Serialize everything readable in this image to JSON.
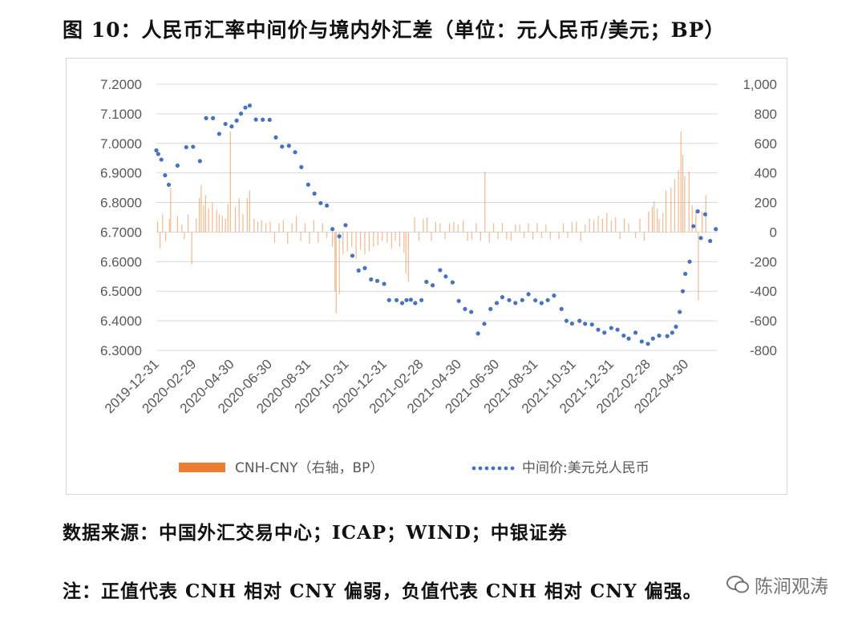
{
  "title": "图 10：人民币汇率中间价与境内外汇差（单位：元人民币/美元；BP）",
  "source": "数据来源：中国外汇交易中心；ICAP；WIND；中银证券",
  "note": "注：正值代表 CNH 相对 CNY 偏弱，负值代表 CNH 相对 CNY 偏强。",
  "watermark": "陈涧观涛",
  "colors": {
    "bar": "#ED7D31",
    "dot": "#4472C4",
    "axis_text": "#595959"
  },
  "chart_data": {
    "type": "bar+line",
    "x_tick_labels": [
      "2019-12-31",
      "2020-02-29",
      "2020-04-30",
      "2020-06-30",
      "2020-08-31",
      "2020-10-31",
      "2020-12-31",
      "2021-02-28",
      "2021-04-30",
      "2021-06-30",
      "2021-08-31",
      "2021-10-31",
      "2021-12-31",
      "2022-02-28",
      "2022-04-30"
    ],
    "left_axis": {
      "min": 6.3,
      "max": 7.2,
      "tick_labels": [
        "6.3000",
        "6.4000",
        "6.5000",
        "6.6000",
        "6.7000",
        "6.8000",
        "6.9000",
        "7.0000",
        "7.1000",
        "7.2000"
      ]
    },
    "right_axis": {
      "min": -800,
      "max": 1000,
      "tick_labels": [
        "-800",
        "-600",
        "-400",
        "-200",
        "0",
        "200",
        "400",
        "600",
        "800",
        "1,000"
      ]
    },
    "series": [
      {
        "name": "CNH-CNY（右轴，BP）",
        "kind": "bar",
        "axis": "right",
        "points": [
          [
            "2020-01-02",
            70
          ],
          [
            "2020-01-06",
            -110
          ],
          [
            "2020-01-10",
            120
          ],
          [
            "2020-01-15",
            -60
          ],
          [
            "2020-01-21",
            90
          ],
          [
            "2020-01-23",
            300
          ],
          [
            "2020-02-03",
            110
          ],
          [
            "2020-02-10",
            50
          ],
          [
            "2020-02-14",
            -50
          ],
          [
            "2020-02-20",
            120
          ],
          [
            "2020-02-26",
            -220
          ],
          [
            "2020-03-04",
            90
          ],
          [
            "2020-03-09",
            230
          ],
          [
            "2020-03-12",
            320
          ],
          [
            "2020-03-16",
            180
          ],
          [
            "2020-03-19",
            250
          ],
          [
            "2020-03-24",
            160
          ],
          [
            "2020-03-30",
            200
          ],
          [
            "2020-04-06",
            150
          ],
          [
            "2020-04-10",
            120
          ],
          [
            "2020-04-15",
            110
          ],
          [
            "2020-04-20",
            90
          ],
          [
            "2020-04-24",
            190
          ],
          [
            "2020-04-28",
            680
          ],
          [
            "2020-05-06",
            170
          ],
          [
            "2020-05-12",
            230
          ],
          [
            "2020-05-18",
            120
          ],
          [
            "2020-05-25",
            230
          ],
          [
            "2020-05-29",
            280
          ],
          [
            "2020-06-05",
            90
          ],
          [
            "2020-06-11",
            70
          ],
          [
            "2020-06-17",
            80
          ],
          [
            "2020-06-24",
            60
          ],
          [
            "2020-07-01",
            70
          ],
          [
            "2020-07-08",
            -70
          ],
          [
            "2020-07-15",
            60
          ],
          [
            "2020-07-22",
            80
          ],
          [
            "2020-07-29",
            -80
          ],
          [
            "2020-08-05",
            60
          ],
          [
            "2020-08-12",
            110
          ],
          [
            "2020-08-19",
            -60
          ],
          [
            "2020-08-26",
            60
          ],
          [
            "2020-09-02",
            -80
          ],
          [
            "2020-09-09",
            80
          ],
          [
            "2020-09-16",
            -70
          ],
          [
            "2020-09-23",
            60
          ],
          [
            "2020-09-30",
            -40
          ],
          [
            "2020-10-09",
            -100
          ],
          [
            "2020-10-13",
            -400
          ],
          [
            "2020-10-15",
            -550
          ],
          [
            "2020-10-20",
            -420
          ],
          [
            "2020-10-26",
            -150
          ],
          [
            "2020-11-02",
            -130
          ],
          [
            "2020-11-09",
            -100
          ],
          [
            "2020-11-16",
            -180
          ],
          [
            "2020-11-23",
            -120
          ],
          [
            "2020-11-30",
            -150
          ],
          [
            "2020-12-07",
            -130
          ],
          [
            "2020-12-14",
            -100
          ],
          [
            "2020-12-21",
            -90
          ],
          [
            "2020-12-28",
            -60
          ],
          [
            "2021-01-05",
            -70
          ],
          [
            "2021-01-12",
            -110
          ],
          [
            "2021-01-18",
            -60
          ],
          [
            "2021-01-25",
            -100
          ],
          [
            "2021-02-01",
            -140
          ],
          [
            "2021-02-04",
            -280
          ],
          [
            "2021-02-08",
            -340
          ],
          [
            "2021-02-18",
            100
          ],
          [
            "2021-02-25",
            -60
          ],
          [
            "2021-03-04",
            90
          ],
          [
            "2021-03-10",
            100
          ],
          [
            "2021-03-17",
            -60
          ],
          [
            "2021-03-24",
            70
          ],
          [
            "2021-03-31",
            60
          ],
          [
            "2021-04-08",
            -50
          ],
          [
            "2021-04-15",
            60
          ],
          [
            "2021-04-22",
            70
          ],
          [
            "2021-04-29",
            50
          ],
          [
            "2021-05-07",
            80
          ],
          [
            "2021-05-14",
            -60
          ],
          [
            "2021-05-21",
            -50
          ],
          [
            "2021-05-28",
            60
          ],
          [
            "2021-06-04",
            -60
          ],
          [
            "2021-06-11",
            410
          ],
          [
            "2021-06-18",
            -70
          ],
          [
            "2021-06-25",
            60
          ],
          [
            "2021-07-02",
            -50
          ],
          [
            "2021-07-09",
            60
          ],
          [
            "2021-07-16",
            -50
          ],
          [
            "2021-07-23",
            -60
          ],
          [
            "2021-07-30",
            50
          ],
          [
            "2021-08-06",
            50
          ],
          [
            "2021-08-13",
            -40
          ],
          [
            "2021-08-20",
            60
          ],
          [
            "2021-08-27",
            -50
          ],
          [
            "2021-09-03",
            60
          ],
          [
            "2021-09-10",
            -40
          ],
          [
            "2021-09-17",
            50
          ],
          [
            "2021-09-24",
            -50
          ],
          [
            "2021-10-08",
            -50
          ],
          [
            "2021-10-15",
            60
          ],
          [
            "2021-10-22",
            -40
          ],
          [
            "2021-10-29",
            70
          ],
          [
            "2021-11-05",
            70
          ],
          [
            "2021-11-12",
            -60
          ],
          [
            "2021-11-19",
            50
          ],
          [
            "2021-11-26",
            90
          ],
          [
            "2021-12-03",
            80
          ],
          [
            "2021-12-10",
            110
          ],
          [
            "2021-12-17",
            90
          ],
          [
            "2021-12-24",
            130
          ],
          [
            "2021-12-31",
            80
          ],
          [
            "2022-01-07",
            100
          ],
          [
            "2022-01-14",
            -50
          ],
          [
            "2022-01-21",
            90
          ],
          [
            "2022-01-28",
            60
          ],
          [
            "2022-02-08",
            -40
          ],
          [
            "2022-02-15",
            90
          ],
          [
            "2022-02-22",
            -60
          ],
          [
            "2022-03-01",
            140
          ],
          [
            "2022-03-07",
            170
          ],
          [
            "2022-03-10",
            210
          ],
          [
            "2022-03-15",
            160
          ],
          [
            "2022-03-18",
            90
          ],
          [
            "2022-03-24",
            130
          ],
          [
            "2022-03-29",
            280
          ],
          [
            "2022-04-06",
            300
          ],
          [
            "2022-04-12",
            360
          ],
          [
            "2022-04-18",
            420
          ],
          [
            "2022-04-22",
            680
          ],
          [
            "2022-04-25",
            520
          ],
          [
            "2022-04-28",
            380
          ],
          [
            "2022-05-05",
            410
          ],
          [
            "2022-05-10",
            180
          ],
          [
            "2022-05-16",
            150
          ],
          [
            "2022-05-20",
            -460
          ],
          [
            "2022-05-26",
            140
          ],
          [
            "2022-06-01",
            250
          ]
        ]
      },
      {
        "name": "中间价:美元兑人民币",
        "kind": "dotted-line",
        "axis": "left",
        "points": [
          [
            "2019-12-31",
            6.9762
          ],
          [
            "2020-01-03",
            6.964
          ],
          [
            "2020-01-08",
            6.945
          ],
          [
            "2020-01-14",
            6.892
          ],
          [
            "2020-01-20",
            6.86
          ],
          [
            "2020-02-03",
            6.9249
          ],
          [
            "2020-02-17",
            6.987
          ],
          [
            "2020-02-28",
            6.9884
          ],
          [
            "2020-03-10",
            6.94
          ],
          [
            "2020-03-20",
            7.0851
          ],
          [
            "2020-03-31",
            7.0851
          ],
          [
            "2020-04-10",
            7.032
          ],
          [
            "2020-04-20",
            7.0657
          ],
          [
            "2020-04-30",
            7.0571
          ],
          [
            "2020-05-08",
            7.077
          ],
          [
            "2020-05-15",
            7.1004
          ],
          [
            "2020-05-22",
            7.1209
          ],
          [
            "2020-05-29",
            7.1277
          ],
          [
            "2020-06-08",
            7.0803
          ],
          [
            "2020-06-19",
            7.08
          ],
          [
            "2020-06-30",
            7.0795
          ],
          [
            "2020-07-10",
            7.02
          ],
          [
            "2020-07-20",
            6.989
          ],
          [
            "2020-07-31",
            6.992
          ],
          [
            "2020-08-10",
            6.97
          ],
          [
            "2020-08-20",
            6.9198
          ],
          [
            "2020-08-31",
            6.8605
          ],
          [
            "2020-09-10",
            6.83
          ],
          [
            "2020-09-20",
            6.798
          ],
          [
            "2020-09-30",
            6.7896
          ],
          [
            "2020-10-09",
            6.71
          ],
          [
            "2020-10-20",
            6.6857
          ],
          [
            "2020-10-30",
            6.7232
          ],
          [
            "2020-11-10",
            6.62
          ],
          [
            "2020-11-20",
            6.57
          ],
          [
            "2020-11-30",
            6.5782
          ],
          [
            "2020-12-10",
            6.54
          ],
          [
            "2020-12-20",
            6.535
          ],
          [
            "2020-12-31",
            6.5249
          ],
          [
            "2021-01-08",
            6.47
          ],
          [
            "2021-01-20",
            6.47
          ],
          [
            "2021-01-29",
            6.46
          ],
          [
            "2021-02-05",
            6.47
          ],
          [
            "2021-02-12",
            6.4713
          ],
          [
            "2021-02-19",
            6.46
          ],
          [
            "2021-03-01",
            6.47
          ],
          [
            "2021-03-09",
            6.5318
          ],
          [
            "2021-03-19",
            6.52
          ],
          [
            "2021-03-31",
            6.5713
          ],
          [
            "2021-04-09",
            6.55
          ],
          [
            "2021-04-20",
            6.53
          ],
          [
            "2021-04-30",
            6.4672
          ],
          [
            "2021-05-10",
            6.44
          ],
          [
            "2021-05-20",
            6.43
          ],
          [
            "2021-05-31",
            6.3572
          ],
          [
            "2021-06-10",
            6.39
          ],
          [
            "2021-06-20",
            6.44
          ],
          [
            "2021-06-30",
            6.4601
          ],
          [
            "2021-07-09",
            6.48
          ],
          [
            "2021-07-20",
            6.47
          ],
          [
            "2021-07-30",
            6.4602
          ],
          [
            "2021-08-10",
            6.47
          ],
          [
            "2021-08-20",
            6.49
          ],
          [
            "2021-08-31",
            6.4692
          ],
          [
            "2021-09-10",
            6.46
          ],
          [
            "2021-09-20",
            6.47
          ],
          [
            "2021-09-30",
            6.4854
          ],
          [
            "2021-10-12",
            6.44
          ],
          [
            "2021-10-20",
            6.4
          ],
          [
            "2021-10-29",
            6.3907
          ],
          [
            "2021-11-10",
            6.4
          ],
          [
            "2021-11-19",
            6.39
          ],
          [
            "2021-11-30",
            6.3875
          ],
          [
            "2021-12-10",
            6.37
          ],
          [
            "2021-12-20",
            6.36
          ],
          [
            "2021-12-31",
            6.3757
          ],
          [
            "2022-01-10",
            6.37
          ],
          [
            "2022-01-20",
            6.35
          ],
          [
            "2022-01-28",
            6.34
          ],
          [
            "2022-02-08",
            6.36
          ],
          [
            "2022-02-18",
            6.33
          ],
          [
            "2022-02-28",
            6.3222
          ],
          [
            "2022-03-08",
            6.34
          ],
          [
            "2022-03-18",
            6.35
          ],
          [
            "2022-03-31",
            6.3482
          ],
          [
            "2022-04-08",
            6.36
          ],
          [
            "2022-04-14",
            6.38
          ],
          [
            "2022-04-20",
            6.43
          ],
          [
            "2022-04-25",
            6.5
          ],
          [
            "2022-04-29",
            6.5588
          ],
          [
            "2022-05-06",
            6.6
          ],
          [
            "2022-05-12",
            6.72
          ],
          [
            "2022-05-19",
            6.77
          ],
          [
            "2022-05-24",
            6.68
          ],
          [
            "2022-05-31",
            6.76
          ],
          [
            "2022-06-08",
            6.67
          ],
          [
            "2022-06-17",
            6.71
          ]
        ]
      }
    ],
    "legend_position": "bottom"
  }
}
